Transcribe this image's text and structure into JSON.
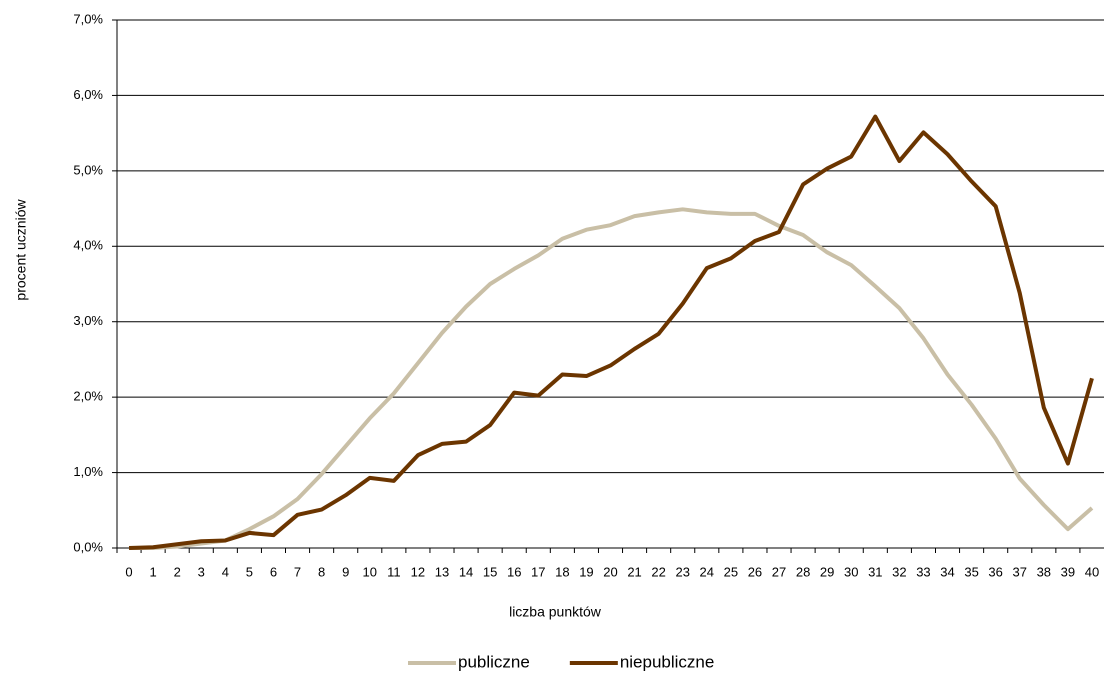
{
  "chart_data": {
    "type": "line",
    "ylabel": "procent uczniów",
    "xlabel": "liczba punktów",
    "categories": [
      "0",
      "1",
      "2",
      "3",
      "4",
      "5",
      "6",
      "7",
      "8",
      "9",
      "10",
      "11",
      "12",
      "13",
      "14",
      "15",
      "16",
      "17",
      "18",
      "19",
      "20",
      "21",
      "22",
      "23",
      "24",
      "25",
      "26",
      "27",
      "28",
      "29",
      "30",
      "31",
      "32",
      "33",
      "34",
      "35",
      "36",
      "37",
      "38",
      "39",
      "40"
    ],
    "series": [
      {
        "name": "publiczne",
        "color": "#c9bfa6",
        "values": [
          0,
          0,
          0.02,
          0.06,
          0.1,
          0.25,
          0.42,
          0.65,
          0.98,
          1.35,
          1.72,
          2.05,
          2.45,
          2.85,
          3.2,
          3.5,
          3.7,
          3.88,
          4.1,
          4.22,
          4.28,
          4.4,
          4.45,
          4.49,
          4.45,
          4.43,
          4.43,
          4.27,
          4.15,
          3.92,
          3.75,
          3.47,
          3.18,
          2.78,
          2.3,
          1.9,
          1.45,
          0.92,
          0.57,
          0.25,
          0.53
        ]
      },
      {
        "name": "niepubliczne",
        "color": "#6b3500",
        "values": [
          0,
          0.01,
          0.05,
          0.09,
          0.1,
          0.2,
          0.17,
          0.44,
          0.51,
          0.7,
          0.93,
          0.89,
          1.23,
          1.38,
          1.41,
          1.63,
          2.06,
          2.02,
          2.3,
          2.28,
          2.42,
          2.64,
          2.84,
          3.24,
          3.71,
          3.84,
          4.07,
          4.19,
          4.82,
          5.03,
          5.19,
          5.72,
          5.13,
          5.51,
          5.22,
          4.86,
          4.53,
          3.38,
          1.86,
          1.12,
          2.25
        ]
      }
    ],
    "ylim": [
      0,
      7
    ],
    "yticks": [
      {
        "value": 0,
        "label": "0,0%"
      },
      {
        "value": 1,
        "label": "1,0%"
      },
      {
        "value": 2,
        "label": "2,0%"
      },
      {
        "value": 3,
        "label": "3,0%"
      },
      {
        "value": 4,
        "label": "4,0%"
      },
      {
        "value": 5,
        "label": "5,0%"
      },
      {
        "value": 6,
        "label": "6,0%"
      },
      {
        "value": 7,
        "label": "7,0%"
      }
    ],
    "grid": true,
    "legend": "bottom"
  }
}
